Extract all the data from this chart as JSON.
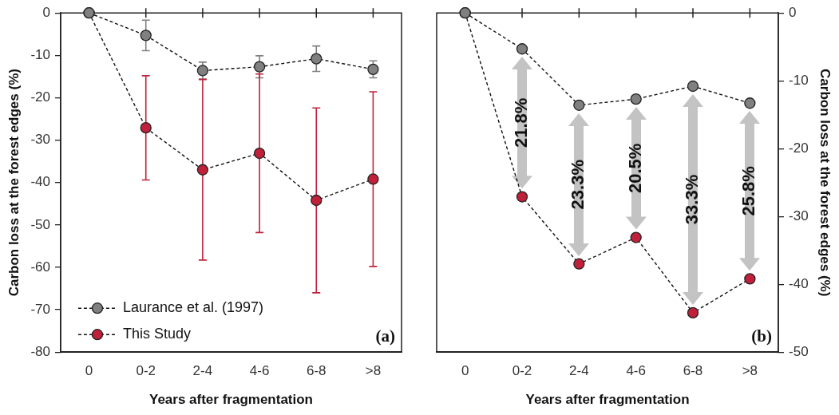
{
  "chart_data": [
    {
      "type": "line",
      "categories": [
        "0",
        "0-2",
        "2-4",
        "4-6",
        "6-8",
        ">8"
      ],
      "xlabel": "Years after fragmentation",
      "ylabel": "Carbon loss at the forest edges (%)",
      "ylim": [
        -80,
        0
      ],
      "yticks": [
        -80,
        -70,
        -60,
        -50,
        -40,
        -30,
        -20,
        -10,
        0
      ],
      "marker": "circle",
      "line_style": "dashed",
      "legend": "bottom left",
      "series": [
        {
          "name": "Laurance et al. (1997)",
          "color": "#808080",
          "values": [
            0,
            -5.3,
            -13.6,
            -12.7,
            -10.8,
            -13.3
          ],
          "errors": [
            null,
            3.6,
            2.0,
            2.6,
            3.0,
            2.0
          ]
        },
        {
          "name": "This Study",
          "color": "#c0203a",
          "values": [
            0,
            -27.1,
            -37.0,
            -33.1,
            -44.2,
            -39.2
          ],
          "errors": [
            null,
            12.3,
            21.3,
            18.7,
            21.8,
            20.6
          ]
        }
      ],
      "annotations": [
        "(a)"
      ]
    },
    {
      "type": "line",
      "categories": [
        "0",
        "0-2",
        "2-4",
        "4-6",
        "6-8",
        ">8"
      ],
      "xlabel": "Years after fragmentation",
      "y2label": "Carbon loss at the forest edges (%)",
      "y2lim": [
        -50,
        0
      ],
      "y2ticks": [
        -50,
        -40,
        -30,
        -20,
        -10,
        0
      ],
      "marker": "circle",
      "line_style": "dashed",
      "series": [
        {
          "color": "#808080",
          "axis": "y2",
          "values": [
            0,
            -5.3,
            -13.6,
            -12.7,
            -10.8,
            -13.3
          ]
        },
        {
          "color": "#c0203a",
          "axis": "y2",
          "values": [
            0,
            -27.1,
            -37.0,
            -33.1,
            -44.2,
            -39.2
          ]
        }
      ],
      "annotations": [
        "(b)",
        "21.8%",
        "23.3%",
        "20.5%",
        "33.3%",
        "25.8%"
      ]
    }
  ]
}
